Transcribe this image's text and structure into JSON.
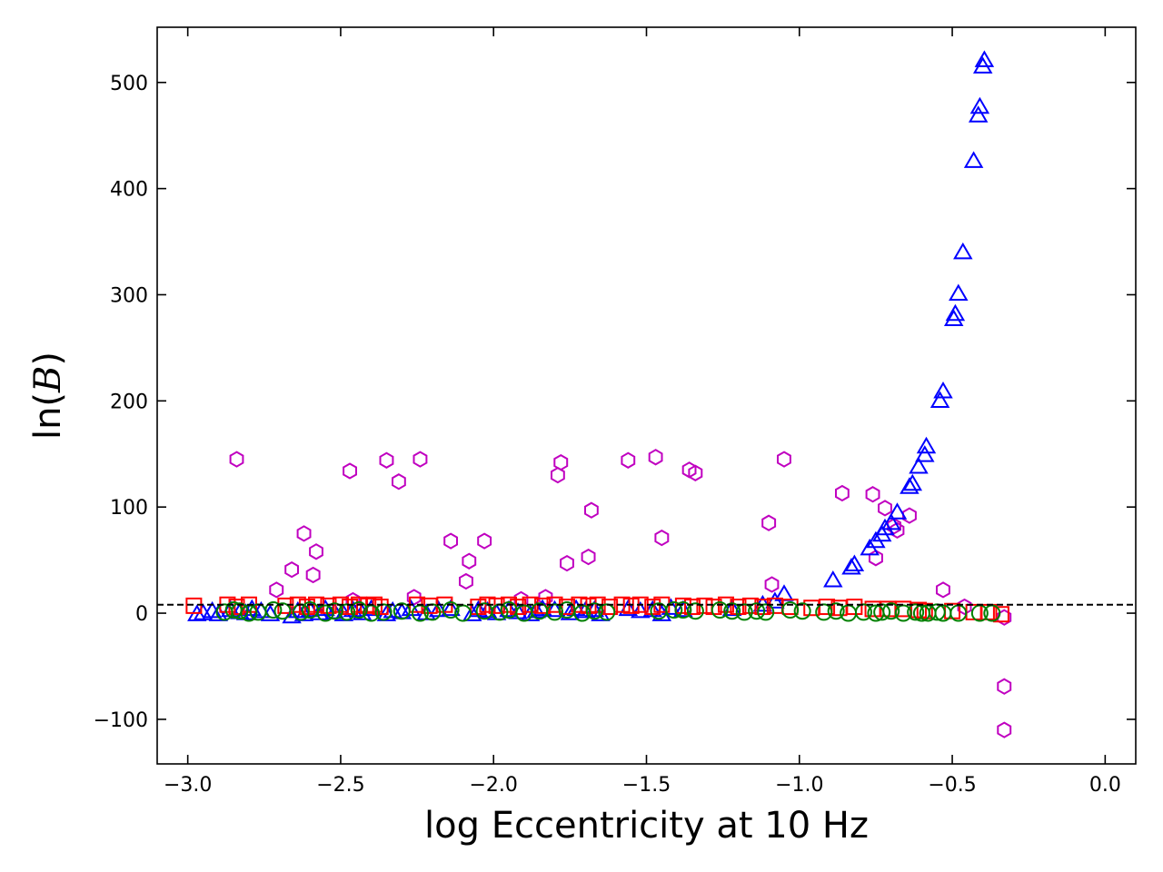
{
  "chart_data": {
    "type": "scatter",
    "xlabel": "log Eccentricity at 10 Hz",
    "ylabel": {
      "fn": "ln(",
      "symbol": "B",
      "close": ")"
    },
    "xlim": [
      -3.1,
      0.1
    ],
    "ylim": [
      -142,
      552
    ],
    "xticks": [
      -3.0,
      -2.5,
      -2.0,
      -1.5,
      -1.0,
      -0.5,
      0.0
    ],
    "xtick_labels": [
      "−3.0",
      "−2.5",
      "−2.0",
      "−1.5",
      "−1.0",
      "−0.5",
      "0.0"
    ],
    "yticks": [
      -100,
      0,
      100,
      200,
      300,
      400,
      500
    ],
    "ytick_labels": [
      "−100",
      "0",
      "100",
      "200",
      "300",
      "400",
      "500"
    ],
    "grid": false,
    "legend": "none",
    "reference_line": {
      "y": 8,
      "style": "dashed",
      "color": "#000000"
    },
    "series": [
      {
        "marker": "hexagon",
        "color": "#c000c0",
        "x": [
          -2.84,
          -2.71,
          -2.66,
          -2.62,
          -2.59,
          -2.58,
          -2.47,
          -2.46,
          -2.35,
          -2.31,
          -2.26,
          -2.24,
          -2.14,
          -2.09,
          -2.08,
          -2.03,
          -1.91,
          -1.83,
          -1.79,
          -1.78,
          -1.76,
          -1.69,
          -1.68,
          -1.56,
          -1.47,
          -1.45,
          -1.36,
          -1.34,
          -1.1,
          -1.09,
          -1.05,
          -0.86,
          -0.76,
          -0.75,
          -0.72,
          -0.69,
          -0.68,
          -0.64,
          -0.53,
          -0.46,
          -0.33,
          -0.33,
          -0.33
        ],
        "y": [
          145,
          22,
          41,
          75,
          36,
          58,
          134,
          12,
          144,
          124,
          15,
          145,
          68,
          30,
          49,
          68,
          13,
          15,
          130,
          142,
          47,
          53,
          97,
          144,
          147,
          71,
          135,
          132,
          85,
          27,
          145,
          113,
          112,
          52,
          99,
          82,
          78,
          92,
          22,
          6,
          -4,
          -69,
          -110
        ]
      },
      {
        "marker": "triangle",
        "color": "#0000ff",
        "x": [
          -2.97,
          -2.95,
          -2.92,
          -2.9,
          -2.86,
          -2.83,
          -2.81,
          -2.79,
          -2.76,
          -2.73,
          -2.66,
          -2.64,
          -2.62,
          -2.6,
          -2.57,
          -2.55,
          -2.52,
          -2.49,
          -2.46,
          -2.43,
          -2.4,
          -2.35,
          -2.33,
          -2.3,
          -2.27,
          -2.22,
          -2.18,
          -2.14,
          -2.07,
          -2.05,
          -2.02,
          -1.99,
          -1.95,
          -1.92,
          -1.88,
          -1.86,
          -1.84,
          -1.8,
          -1.75,
          -1.73,
          -1.7,
          -1.67,
          -1.65,
          -1.56,
          -1.52,
          -1.48,
          -1.45,
          -1.42,
          -1.38,
          -1.22,
          -1.12,
          -1.08,
          -1.05,
          -0.89,
          -0.83,
          -0.82,
          -0.77,
          -0.75,
          -0.73,
          -0.72,
          -0.7,
          -0.68,
          -0.64,
          -0.63,
          -0.61,
          -0.59,
          -0.585,
          -0.54,
          -0.53,
          -0.495,
          -0.49,
          -0.48,
          -0.465,
          -0.43,
          -0.415,
          -0.41,
          -0.4,
          -0.395
        ],
        "y": [
          -2,
          -1,
          1,
          -2,
          2,
          0,
          -1,
          3,
          1,
          -2,
          -4,
          1,
          -2,
          2,
          -1,
          3,
          0,
          -2,
          2,
          -1,
          3,
          -2,
          1,
          0,
          3,
          -1,
          2,
          3,
          -2,
          2,
          1,
          -1,
          2,
          0,
          -2,
          1,
          3,
          2,
          -1,
          3,
          1,
          2,
          -2,
          3,
          1,
          2,
          -2,
          4,
          2,
          3,
          7,
          10,
          17,
          30,
          42,
          45,
          60,
          67,
          73,
          79,
          84,
          94,
          118,
          121,
          137,
          148,
          156,
          199,
          208,
          276,
          281,
          300,
          339,
          425,
          468,
          476,
          514,
          520
        ]
      },
      {
        "marker": "square",
        "color": "#ff0000",
        "x": [
          -2.98,
          -2.87,
          -2.84,
          -2.8,
          -2.68,
          -2.64,
          -2.61,
          -2.58,
          -2.54,
          -2.5,
          -2.47,
          -2.44,
          -2.41,
          -2.39,
          -2.37,
          -2.25,
          -2.21,
          -2.16,
          -2.05,
          -2.02,
          -1.99,
          -1.95,
          -1.92,
          -1.88,
          -1.84,
          -1.8,
          -1.76,
          -1.72,
          -1.69,
          -1.66,
          -1.62,
          -1.58,
          -1.55,
          -1.52,
          -1.48,
          -1.45,
          -1.38,
          -1.35,
          -1.31,
          -1.28,
          -1.24,
          -1.2,
          -1.16,
          -1.12,
          -1.08,
          -1.03,
          -0.96,
          -0.91,
          -0.87,
          -0.82,
          -0.76,
          -0.71,
          -0.66,
          -0.61,
          -0.59,
          -0.5,
          -0.43,
          -0.38,
          -0.34
        ],
        "y": [
          7,
          8,
          6,
          8,
          7,
          8,
          6,
          8,
          7,
          8,
          6,
          8,
          7,
          8,
          6,
          8,
          7,
          8,
          6,
          8,
          7,
          8,
          6,
          8,
          7,
          8,
          6,
          8,
          7,
          8,
          6,
          8,
          7,
          8,
          6,
          8,
          7,
          6,
          7,
          6,
          8,
          6,
          7,
          6,
          7,
          6,
          5,
          6,
          5,
          6,
          4,
          4,
          4,
          3,
          2,
          2,
          1,
          1,
          -1
        ]
      },
      {
        "marker": "circle",
        "color": "#008000",
        "x": [
          -2.88,
          -2.85,
          -2.83,
          -2.8,
          -2.77,
          -2.72,
          -2.69,
          -2.63,
          -2.6,
          -2.55,
          -2.52,
          -2.48,
          -2.44,
          -2.4,
          -2.36,
          -2.3,
          -2.24,
          -2.2,
          -2.14,
          -2.1,
          -2.03,
          -1.98,
          -1.95,
          -1.9,
          -1.85,
          -1.8,
          -1.76,
          -1.71,
          -1.67,
          -1.63,
          -1.46,
          -1.41,
          -1.38,
          -1.34,
          -1.26,
          -1.22,
          -1.18,
          -1.14,
          -1.11,
          -1.03,
          -0.99,
          -0.92,
          -0.88,
          -0.84,
          -0.79,
          -0.75,
          -0.73,
          -0.7,
          -0.66,
          -0.62,
          -0.6,
          -0.58,
          -0.55,
          -0.53,
          -0.48,
          -0.41,
          -0.37
        ],
        "y": [
          1,
          3,
          2,
          0,
          1,
          3,
          2,
          1,
          3,
          0,
          2,
          1,
          3,
          0,
          1,
          2,
          0,
          1,
          3,
          0,
          2,
          1,
          3,
          0,
          2,
          1,
          3,
          0,
          2,
          1,
          2,
          3,
          3,
          2,
          3,
          2,
          1,
          2,
          1,
          3,
          2,
          1,
          2,
          0,
          1,
          0,
          1,
          2,
          0,
          1,
          0,
          0,
          1,
          0,
          0,
          0,
          0
        ]
      }
    ]
  }
}
